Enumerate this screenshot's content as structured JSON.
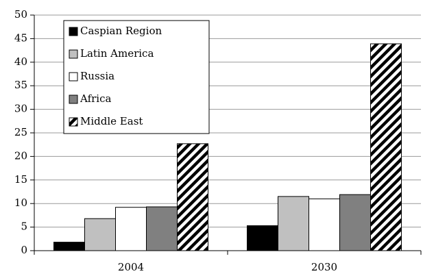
{
  "chart_data": {
    "type": "bar",
    "categories": [
      "2004",
      "2030"
    ],
    "series": [
      {
        "name": "Caspian Region",
        "color": "#000000",
        "values": [
          1.8,
          5.3
        ]
      },
      {
        "name": "Latin America",
        "color": "#c0c0c0",
        "values": [
          6.8,
          11.5
        ]
      },
      {
        "name": "Russia",
        "color": "#ffffff",
        "values": [
          9.2,
          11.0
        ]
      },
      {
        "name": "Africa",
        "color": "#808080",
        "values": [
          9.3,
          11.9
        ]
      },
      {
        "name": "Middle East",
        "color": "#ffffff",
        "pattern": "hatch",
        "values": [
          22.7,
          43.9
        ]
      }
    ],
    "ylim": [
      0,
      50
    ],
    "yticks": [
      0,
      5,
      10,
      15,
      20,
      25,
      30,
      35,
      40,
      45,
      50
    ],
    "grid": true,
    "legend": "upper left"
  }
}
